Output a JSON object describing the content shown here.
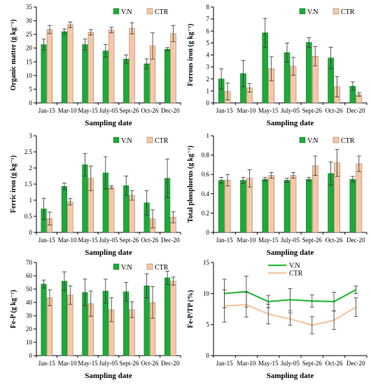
{
  "colors": {
    "vn": "#1fa83a",
    "ctr": "#f7c7a6",
    "ctr_stroke": "#8a6a55",
    "vn_line": "#2bbd3d",
    "ctr_line": "#f5c6a4"
  },
  "chart_data": [
    {
      "type": "bar",
      "categories": [
        "Jan-15",
        "Mar-10",
        "May-15",
        "July-05",
        "Sept-26",
        "Oct-26",
        "Dec-20"
      ],
      "ylabel": "Organic matter (g kg⁻¹)",
      "xlabel": "Sampling date",
      "ylim": [
        0,
        35
      ],
      "yticks": [
        0,
        5,
        10,
        15,
        20,
        25,
        30,
        35
      ],
      "ytick_labels": [
        "0",
        "5",
        "10",
        "15",
        "20",
        "25",
        "30",
        "35"
      ],
      "legend": "top-right",
      "series": [
        {
          "name": "V.N",
          "values": [
            21.3,
            26.0,
            21.3,
            19.0,
            16.0,
            14.3,
            19.6
          ],
          "errors": [
            2.0,
            1.0,
            2.0,
            2.3,
            1.5,
            1.8,
            0.6
          ]
        },
        {
          "name": "CTR",
          "values": [
            26.8,
            28.5,
            25.8,
            26.6,
            27.2,
            20.8,
            25.3
          ],
          "errors": [
            1.5,
            1.0,
            1.0,
            1.0,
            2.0,
            4.8,
            3.0
          ]
        }
      ]
    },
    {
      "type": "bar",
      "categories": [
        "Jan-15",
        "Mar-10",
        "May-15",
        "July-05",
        "Sept-26",
        "Oct-26",
        "Dec-20"
      ],
      "ylabel": "Ferrous iron (g kg⁻¹)",
      "xlabel": "Sampling date",
      "ylim": [
        0,
        8
      ],
      "yticks": [
        0,
        1,
        2,
        3,
        4,
        5,
        6,
        7,
        8
      ],
      "ytick_labels": [
        "0",
        "1",
        "2",
        "3",
        "4",
        "5",
        "6",
        "7",
        "8"
      ],
      "legend": "top-right",
      "series": [
        {
          "name": "V.N",
          "values": [
            2.0,
            2.45,
            5.85,
            4.2,
            5.05,
            3.75,
            1.4
          ],
          "errors": [
            0.85,
            1.1,
            1.2,
            0.8,
            0.4,
            0.9,
            0.35
          ]
        },
        {
          "name": "CTR",
          "values": [
            0.95,
            1.25,
            2.85,
            3.05,
            3.9,
            1.35,
            0.7
          ],
          "errors": [
            0.7,
            0.35,
            1.0,
            0.75,
            0.8,
            0.85,
            0.15
          ]
        }
      ]
    },
    {
      "type": "bar",
      "categories": [
        "Jan-15",
        "Mar-10",
        "May-15",
        "July-05",
        "Sept-26",
        "Oct-26",
        "Dec-20"
      ],
      "ylabel": "Ferric iron (g kg⁻¹)",
      "xlabel": "Sampling date",
      "ylim": [
        0,
        3
      ],
      "yticks": [
        0,
        0.5,
        1,
        1.5,
        2,
        2.5,
        3
      ],
      "ytick_labels": [
        "0",
        "0.5",
        "1",
        "1.5",
        "2",
        "2.5",
        "3"
      ],
      "legend": "top-right",
      "series": [
        {
          "name": "V.N",
          "values": [
            0.73,
            1.43,
            2.1,
            1.85,
            1.45,
            0.92,
            1.68
          ],
          "errors": [
            0.33,
            0.1,
            0.35,
            0.5,
            0.3,
            0.38,
            0.6
          ]
        },
        {
          "name": "CTR",
          "values": [
            0.43,
            0.95,
            1.68,
            1.4,
            1.15,
            0.42,
            0.47
          ],
          "errors": [
            0.2,
            0.1,
            0.38,
            0.05,
            0.15,
            0.28,
            0.17
          ]
        }
      ]
    },
    {
      "type": "bar",
      "categories": [
        "Jan-15",
        "Mar-10",
        "May-15",
        "July-05",
        "Sept-26",
        "Oct-26",
        "Dec-20"
      ],
      "ylabel": "Total phosphorus (g kg⁻¹)",
      "xlabel": "Sampling date",
      "ylim": [
        0,
        1
      ],
      "yticks": [
        0,
        0.2,
        0.4,
        0.6,
        0.8,
        1
      ],
      "ytick_labels": [
        "0",
        "0.2",
        "0.4",
        "0.6",
        "0.8",
        "1"
      ],
      "legend": "top-right",
      "series": [
        {
          "name": "V.N",
          "values": [
            0.54,
            0.54,
            0.55,
            0.54,
            0.55,
            0.61,
            0.55
          ],
          "errors": [
            0.03,
            0.03,
            0.02,
            0.02,
            0.02,
            0.12,
            0.03
          ]
        },
        {
          "name": "CTR",
          "values": [
            0.54,
            0.56,
            0.59,
            0.59,
            0.69,
            0.72,
            0.71
          ],
          "errors": [
            0.06,
            0.09,
            0.03,
            0.03,
            0.1,
            0.14,
            0.08
          ]
        }
      ]
    },
    {
      "type": "bar",
      "categories": [
        "Jan-15",
        "Mar-10",
        "May-15",
        "July-05",
        "Sept-26",
        "Oct-26",
        "Dec-20"
      ],
      "ylabel": "Fe-P (g kg⁻¹)",
      "xlabel": "Sampling date",
      "ylim": [
        0,
        70
      ],
      "yticks": [
        0,
        10,
        20,
        30,
        40,
        50,
        60,
        70
      ],
      "ytick_labels": [
        "0",
        "10",
        "20",
        "30",
        "40",
        "50",
        "60",
        "70"
      ],
      "legend": "top-right",
      "series": [
        {
          "name": "V.N",
          "values": [
            53.8,
            56.0,
            47.5,
            48.5,
            48.0,
            52.5,
            58.5
          ],
          "errors": [
            3.0,
            7.0,
            10.0,
            9.0,
            7.0,
            9.0,
            5.0
          ]
        },
        {
          "name": "CTR",
          "values": [
            43.5,
            45.5,
            39.0,
            34.5,
            34.5,
            40.0,
            56.0
          ],
          "errors": [
            6.0,
            7.0,
            9.5,
            9.0,
            6.0,
            12.0,
            3.0
          ]
        }
      ]
    },
    {
      "type": "line",
      "categories": [
        "Jan-15",
        "Mar-10",
        "May-15",
        "July-05",
        "Sept-26",
        "Oct-26",
        "Dec-20"
      ],
      "ylabel": "Fe-P/TP (%)",
      "xlabel": "Sampling date",
      "ylim": [
        0,
        15
      ],
      "yticks": [
        0,
        5,
        10,
        15
      ],
      "ytick_labels": [
        "0",
        "5",
        "10",
        "15"
      ],
      "legend": "top-center",
      "series": [
        {
          "name": "V.N",
          "values": [
            10.0,
            10.3,
            8.7,
            9.0,
            8.8,
            8.7,
            10.6
          ],
          "errors": [
            2.3,
            2.5,
            1.0,
            1.8,
            1.0,
            1.5,
            0.6
          ]
        },
        {
          "name": "CTR",
          "values": [
            8.0,
            8.2,
            6.7,
            5.9,
            4.9,
            5.7,
            7.8
          ],
          "errors": [
            2.6,
            2.0,
            1.6,
            1.0,
            1.4,
            1.5,
            1.5
          ]
        }
      ]
    }
  ]
}
